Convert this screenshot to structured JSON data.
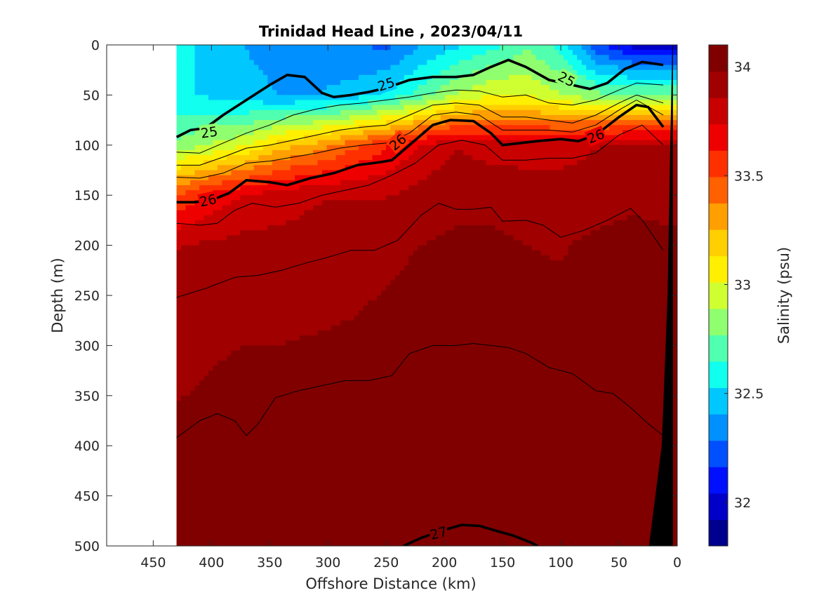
{
  "chart_data": {
    "type": "contour",
    "title": "Trinidad Head Line , 2023/04/11",
    "xlabel": "Offshore Distance (km)",
    "ylabel": "Depth (m)",
    "xlim": [
      490,
      0
    ],
    "ylim": [
      500,
      0
    ],
    "x_reversed": true,
    "y_reversed": true,
    "x_ticks": [
      "450",
      "400",
      "350",
      "300",
      "250",
      "200",
      "150",
      "100",
      "50",
      "0"
    ],
    "y_ticks": [
      "0",
      "50",
      "100",
      "150",
      "200",
      "250",
      "300",
      "350",
      "400",
      "450",
      "500"
    ],
    "colorbar": {
      "label": "Salinity (psu)",
      "range": [
        31.8,
        34.1
      ],
      "ticks": [
        "32",
        "32.5",
        "33",
        "33.5",
        "34"
      ],
      "colors": [
        "#00008f",
        "#0000c8",
        "#0010ff",
        "#0050ff",
        "#0090ff",
        "#00c8ff",
        "#10ffef",
        "#50ffaf",
        "#90ff6f",
        "#cfff30",
        "#ffef00",
        "#ffcf00",
        "#ff9f00",
        "#ff6000",
        "#ff3000",
        "#ef0000",
        "#c80000",
        "#a00000",
        "#800000"
      ]
    },
    "salinity_field": {
      "distance_km": [
        430,
        400,
        370,
        340,
        310,
        280,
        250,
        220,
        190,
        160,
        130,
        100,
        70,
        40,
        12
      ],
      "depth_m": [
        0,
        50,
        100,
        150,
        200,
        300,
        400,
        500
      ],
      "values": [
        [
          32.55,
          32.5,
          32.4,
          32.35,
          32.35,
          32.3,
          32.25,
          32.4,
          32.5,
          32.6,
          32.75,
          32.6,
          32.2,
          32.0,
          32.0
        ],
        [
          32.55,
          32.5,
          32.45,
          32.4,
          32.4,
          32.45,
          32.55,
          32.7,
          32.9,
          33.0,
          33.0,
          32.9,
          32.8,
          32.8,
          32.8
        ],
        [
          32.8,
          32.9,
          33.0,
          33.2,
          33.3,
          33.45,
          33.6,
          33.75,
          33.85,
          33.8,
          33.8,
          33.8,
          33.85,
          33.9,
          33.9
        ],
        [
          33.5,
          33.65,
          33.75,
          33.8,
          33.85,
          33.85,
          33.85,
          33.9,
          33.95,
          33.95,
          33.92,
          33.92,
          33.93,
          33.95,
          33.95
        ],
        [
          33.85,
          33.88,
          33.9,
          33.9,
          33.9,
          33.92,
          33.95,
          33.98,
          34.0,
          34.0,
          33.98,
          33.97,
          34.0,
          34.02,
          34.0
        ],
        [
          33.95,
          33.97,
          33.98,
          33.98,
          33.99,
          34.0,
          34.02,
          34.04,
          34.04,
          34.03,
          34.02,
          34.02,
          34.03,
          34.04,
          34.0
        ],
        [
          34.0,
          34.01,
          34.02,
          34.03,
          34.04,
          34.04,
          34.05,
          34.06,
          34.06,
          34.06,
          34.05,
          34.05,
          34.05,
          34.06,
          34.03
        ],
        [
          34.03,
          34.04,
          34.05,
          34.06,
          34.06,
          34.06,
          34.07,
          34.08,
          34.08,
          34.07,
          34.06,
          34.06,
          34.06,
          34.06,
          34.05
        ]
      ]
    },
    "density_contours": [
      {
        "level": "25",
        "bold": true,
        "points": [
          [
            430,
            92
          ],
          [
            418,
            85
          ],
          [
            405,
            83
          ],
          [
            390,
            70
          ],
          [
            370,
            55
          ],
          [
            350,
            40
          ],
          [
            335,
            30
          ],
          [
            320,
            32
          ],
          [
            305,
            48
          ],
          [
            295,
            52
          ],
          [
            280,
            50
          ],
          [
            265,
            47
          ],
          [
            250,
            43
          ],
          [
            230,
            35
          ],
          [
            210,
            32
          ],
          [
            190,
            32
          ],
          [
            175,
            30
          ],
          [
            160,
            22
          ],
          [
            145,
            15
          ],
          [
            130,
            22
          ],
          [
            110,
            35
          ],
          [
            90,
            40
          ],
          [
            75,
            44
          ],
          [
            60,
            38
          ],
          [
            45,
            24
          ],
          [
            30,
            17
          ],
          [
            12,
            20
          ]
        ]
      },
      {
        "level": "26",
        "bold": true,
        "points": [
          [
            430,
            157
          ],
          [
            415,
            157
          ],
          [
            400,
            155
          ],
          [
            385,
            148
          ],
          [
            370,
            135
          ],
          [
            350,
            137
          ],
          [
            335,
            140
          ],
          [
            315,
            133
          ],
          [
            295,
            128
          ],
          [
            275,
            120
          ],
          [
            255,
            117
          ],
          [
            245,
            115
          ],
          [
            230,
            100
          ],
          [
            210,
            80
          ],
          [
            195,
            75
          ],
          [
            175,
            76
          ],
          [
            160,
            88
          ],
          [
            150,
            100
          ],
          [
            135,
            98
          ],
          [
            120,
            96
          ],
          [
            100,
            94
          ],
          [
            85,
            96
          ],
          [
            70,
            90
          ],
          [
            50,
            72
          ],
          [
            35,
            60
          ],
          [
            25,
            62
          ],
          [
            12,
            82
          ]
        ]
      },
      {
        "level": "27",
        "bold": true,
        "points": [
          [
            235,
            500
          ],
          [
            220,
            492
          ],
          [
            200,
            484
          ],
          [
            185,
            479
          ],
          [
            170,
            480
          ],
          [
            155,
            485
          ],
          [
            140,
            490
          ],
          [
            125,
            497
          ],
          [
            120,
            500
          ]
        ]
      },
      {
        "level": "",
        "bold": false,
        "points": [
          [
            430,
            107
          ],
          [
            410,
            108
          ],
          [
            390,
            98
          ],
          [
            370,
            88
          ],
          [
            350,
            80
          ],
          [
            330,
            70
          ],
          [
            310,
            64
          ],
          [
            290,
            60
          ],
          [
            270,
            58
          ],
          [
            250,
            55
          ],
          [
            230,
            52
          ],
          [
            210,
            48
          ],
          [
            190,
            45
          ],
          [
            170,
            46
          ],
          [
            150,
            52
          ],
          [
            130,
            50
          ],
          [
            110,
            58
          ],
          [
            90,
            60
          ],
          [
            70,
            55
          ],
          [
            50,
            45
          ],
          [
            35,
            38
          ],
          [
            12,
            40
          ]
        ]
      },
      {
        "level": "",
        "bold": false,
        "points": [
          [
            430,
            120
          ],
          [
            410,
            120
          ],
          [
            390,
            112
          ],
          [
            370,
            103
          ],
          [
            350,
            100
          ],
          [
            330,
            95
          ],
          [
            310,
            90
          ],
          [
            290,
            85
          ],
          [
            270,
            82
          ],
          [
            250,
            80
          ],
          [
            230,
            70
          ],
          [
            210,
            60
          ],
          [
            190,
            58
          ],
          [
            170,
            60
          ],
          [
            150,
            72
          ],
          [
            130,
            72
          ],
          [
            110,
            75
          ],
          [
            90,
            78
          ],
          [
            70,
            70
          ],
          [
            50,
            58
          ],
          [
            35,
            50
          ],
          [
            12,
            58
          ]
        ]
      },
      {
        "level": "",
        "bold": false,
        "points": [
          [
            430,
            132
          ],
          [
            410,
            133
          ],
          [
            390,
            128
          ],
          [
            370,
            118
          ],
          [
            350,
            116
          ],
          [
            330,
            112
          ],
          [
            310,
            108
          ],
          [
            290,
            103
          ],
          [
            270,
            100
          ],
          [
            250,
            98
          ],
          [
            230,
            88
          ],
          [
            210,
            70
          ],
          [
            190,
            67
          ],
          [
            170,
            70
          ],
          [
            150,
            85
          ],
          [
            130,
            85
          ],
          [
            110,
            85
          ],
          [
            90,
            87
          ],
          [
            70,
            80
          ],
          [
            50,
            65
          ],
          [
            35,
            55
          ],
          [
            12,
            70
          ]
        ]
      },
      {
        "level": "",
        "bold": false,
        "points": [
          [
            430,
            178
          ],
          [
            410,
            180
          ],
          [
            395,
            178
          ],
          [
            380,
            165
          ],
          [
            365,
            158
          ],
          [
            345,
            162
          ],
          [
            325,
            158
          ],
          [
            305,
            150
          ],
          [
            285,
            145
          ],
          [
            265,
            140
          ],
          [
            245,
            130
          ],
          [
            225,
            118
          ],
          [
            205,
            100
          ],
          [
            185,
            95
          ],
          [
            165,
            100
          ],
          [
            150,
            115
          ],
          [
            130,
            115
          ],
          [
            110,
            113
          ],
          [
            90,
            113
          ],
          [
            70,
            108
          ],
          [
            50,
            90
          ],
          [
            30,
            80
          ],
          [
            12,
            100
          ]
        ]
      },
      {
        "level": "",
        "bold": false,
        "points": [
          [
            430,
            252
          ],
          [
            405,
            243
          ],
          [
            380,
            232
          ],
          [
            360,
            230
          ],
          [
            340,
            225
          ],
          [
            320,
            218
          ],
          [
            300,
            212
          ],
          [
            280,
            205
          ],
          [
            260,
            205
          ],
          [
            240,
            195
          ],
          [
            220,
            170
          ],
          [
            205,
            158
          ],
          [
            190,
            164
          ],
          [
            175,
            164
          ],
          [
            160,
            162
          ],
          [
            150,
            176
          ],
          [
            130,
            175
          ],
          [
            115,
            180
          ],
          [
            100,
            192
          ],
          [
            80,
            185
          ],
          [
            60,
            175
          ],
          [
            40,
            163
          ],
          [
            30,
            175
          ],
          [
            12,
            205
          ]
        ]
      },
      {
        "level": "",
        "bold": false,
        "points": [
          [
            430,
            392
          ],
          [
            410,
            375
          ],
          [
            395,
            368
          ],
          [
            380,
            375
          ],
          [
            370,
            390
          ],
          [
            360,
            378
          ],
          [
            345,
            352
          ],
          [
            325,
            345
          ],
          [
            305,
            340
          ],
          [
            285,
            335
          ],
          [
            265,
            335
          ],
          [
            245,
            330
          ],
          [
            230,
            308
          ],
          [
            210,
            300
          ],
          [
            190,
            300
          ],
          [
            175,
            298
          ],
          [
            160,
            300
          ],
          [
            145,
            302
          ],
          [
            130,
            308
          ],
          [
            110,
            322
          ],
          [
            90,
            328
          ],
          [
            70,
            345
          ],
          [
            55,
            348
          ],
          [
            40,
            362
          ],
          [
            25,
            378
          ],
          [
            12,
            390
          ]
        ]
      }
    ],
    "contour_labels": [
      {
        "text": "25",
        "x": 402,
        "y": 87,
        "angle": -8
      },
      {
        "text": "25",
        "x": 250,
        "y": 39,
        "angle": -18
      },
      {
        "text": "25",
        "x": 95,
        "y": 34,
        "angle": 28
      },
      {
        "text": "26",
        "x": 403,
        "y": 155,
        "angle": -12
      },
      {
        "text": "26",
        "x": 240,
        "y": 97,
        "angle": -40
      },
      {
        "text": "26",
        "x": 70,
        "y": 91,
        "angle": -22
      },
      {
        "text": "27",
        "x": 205,
        "y": 487,
        "angle": -15
      }
    ],
    "data_extent_km": 430,
    "bathymetry": [
      [
        12,
        0
      ],
      [
        4,
        0
      ],
      [
        6,
        120
      ],
      [
        8,
        250
      ],
      [
        13,
        400
      ],
      [
        24,
        500
      ],
      [
        4,
        500
      ],
      [
        4,
        0
      ]
    ],
    "grid": false
  }
}
